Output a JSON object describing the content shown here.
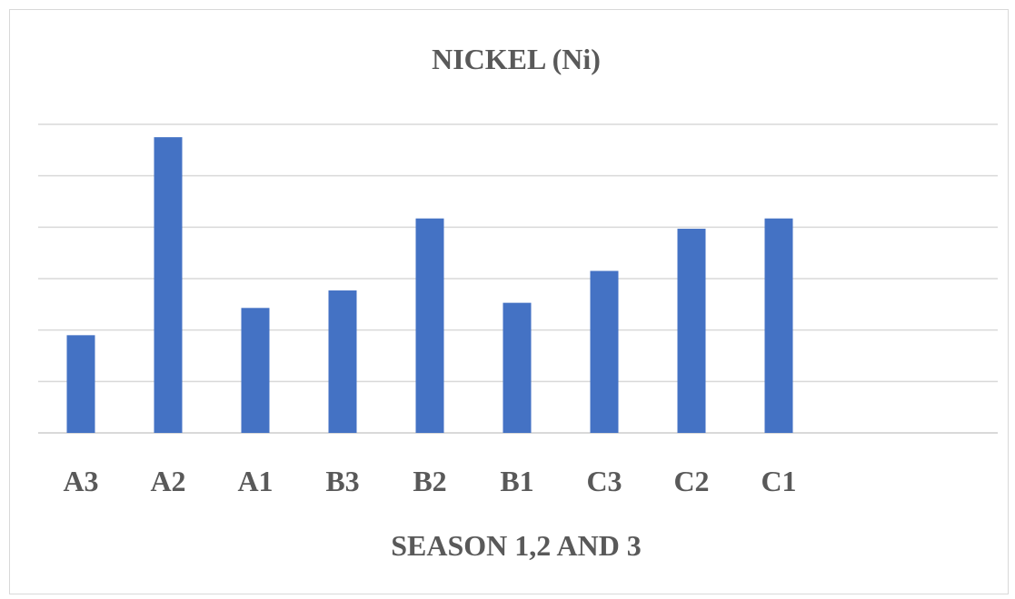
{
  "chart_data": {
    "type": "bar",
    "title": "NICKEL (Ni)",
    "xlabel": "SEASON 1,2 AND 3",
    "ylabel": "",
    "categories": [
      "A3",
      "A2",
      "A1",
      "B3",
      "B2",
      "B1",
      "C3",
      "C2",
      "C1"
    ],
    "values": [
      1.9,
      5.75,
      2.43,
      2.77,
      4.17,
      2.53,
      3.15,
      3.97,
      4.17
    ],
    "ylim": [
      0,
      6
    ],
    "y_gridline_step": 1,
    "y_tick_labels_shown": false,
    "grid": true,
    "legend": "none",
    "colors": {
      "bar": "#4472c4",
      "grid": "#d9d9d9",
      "text": "#595959"
    }
  }
}
